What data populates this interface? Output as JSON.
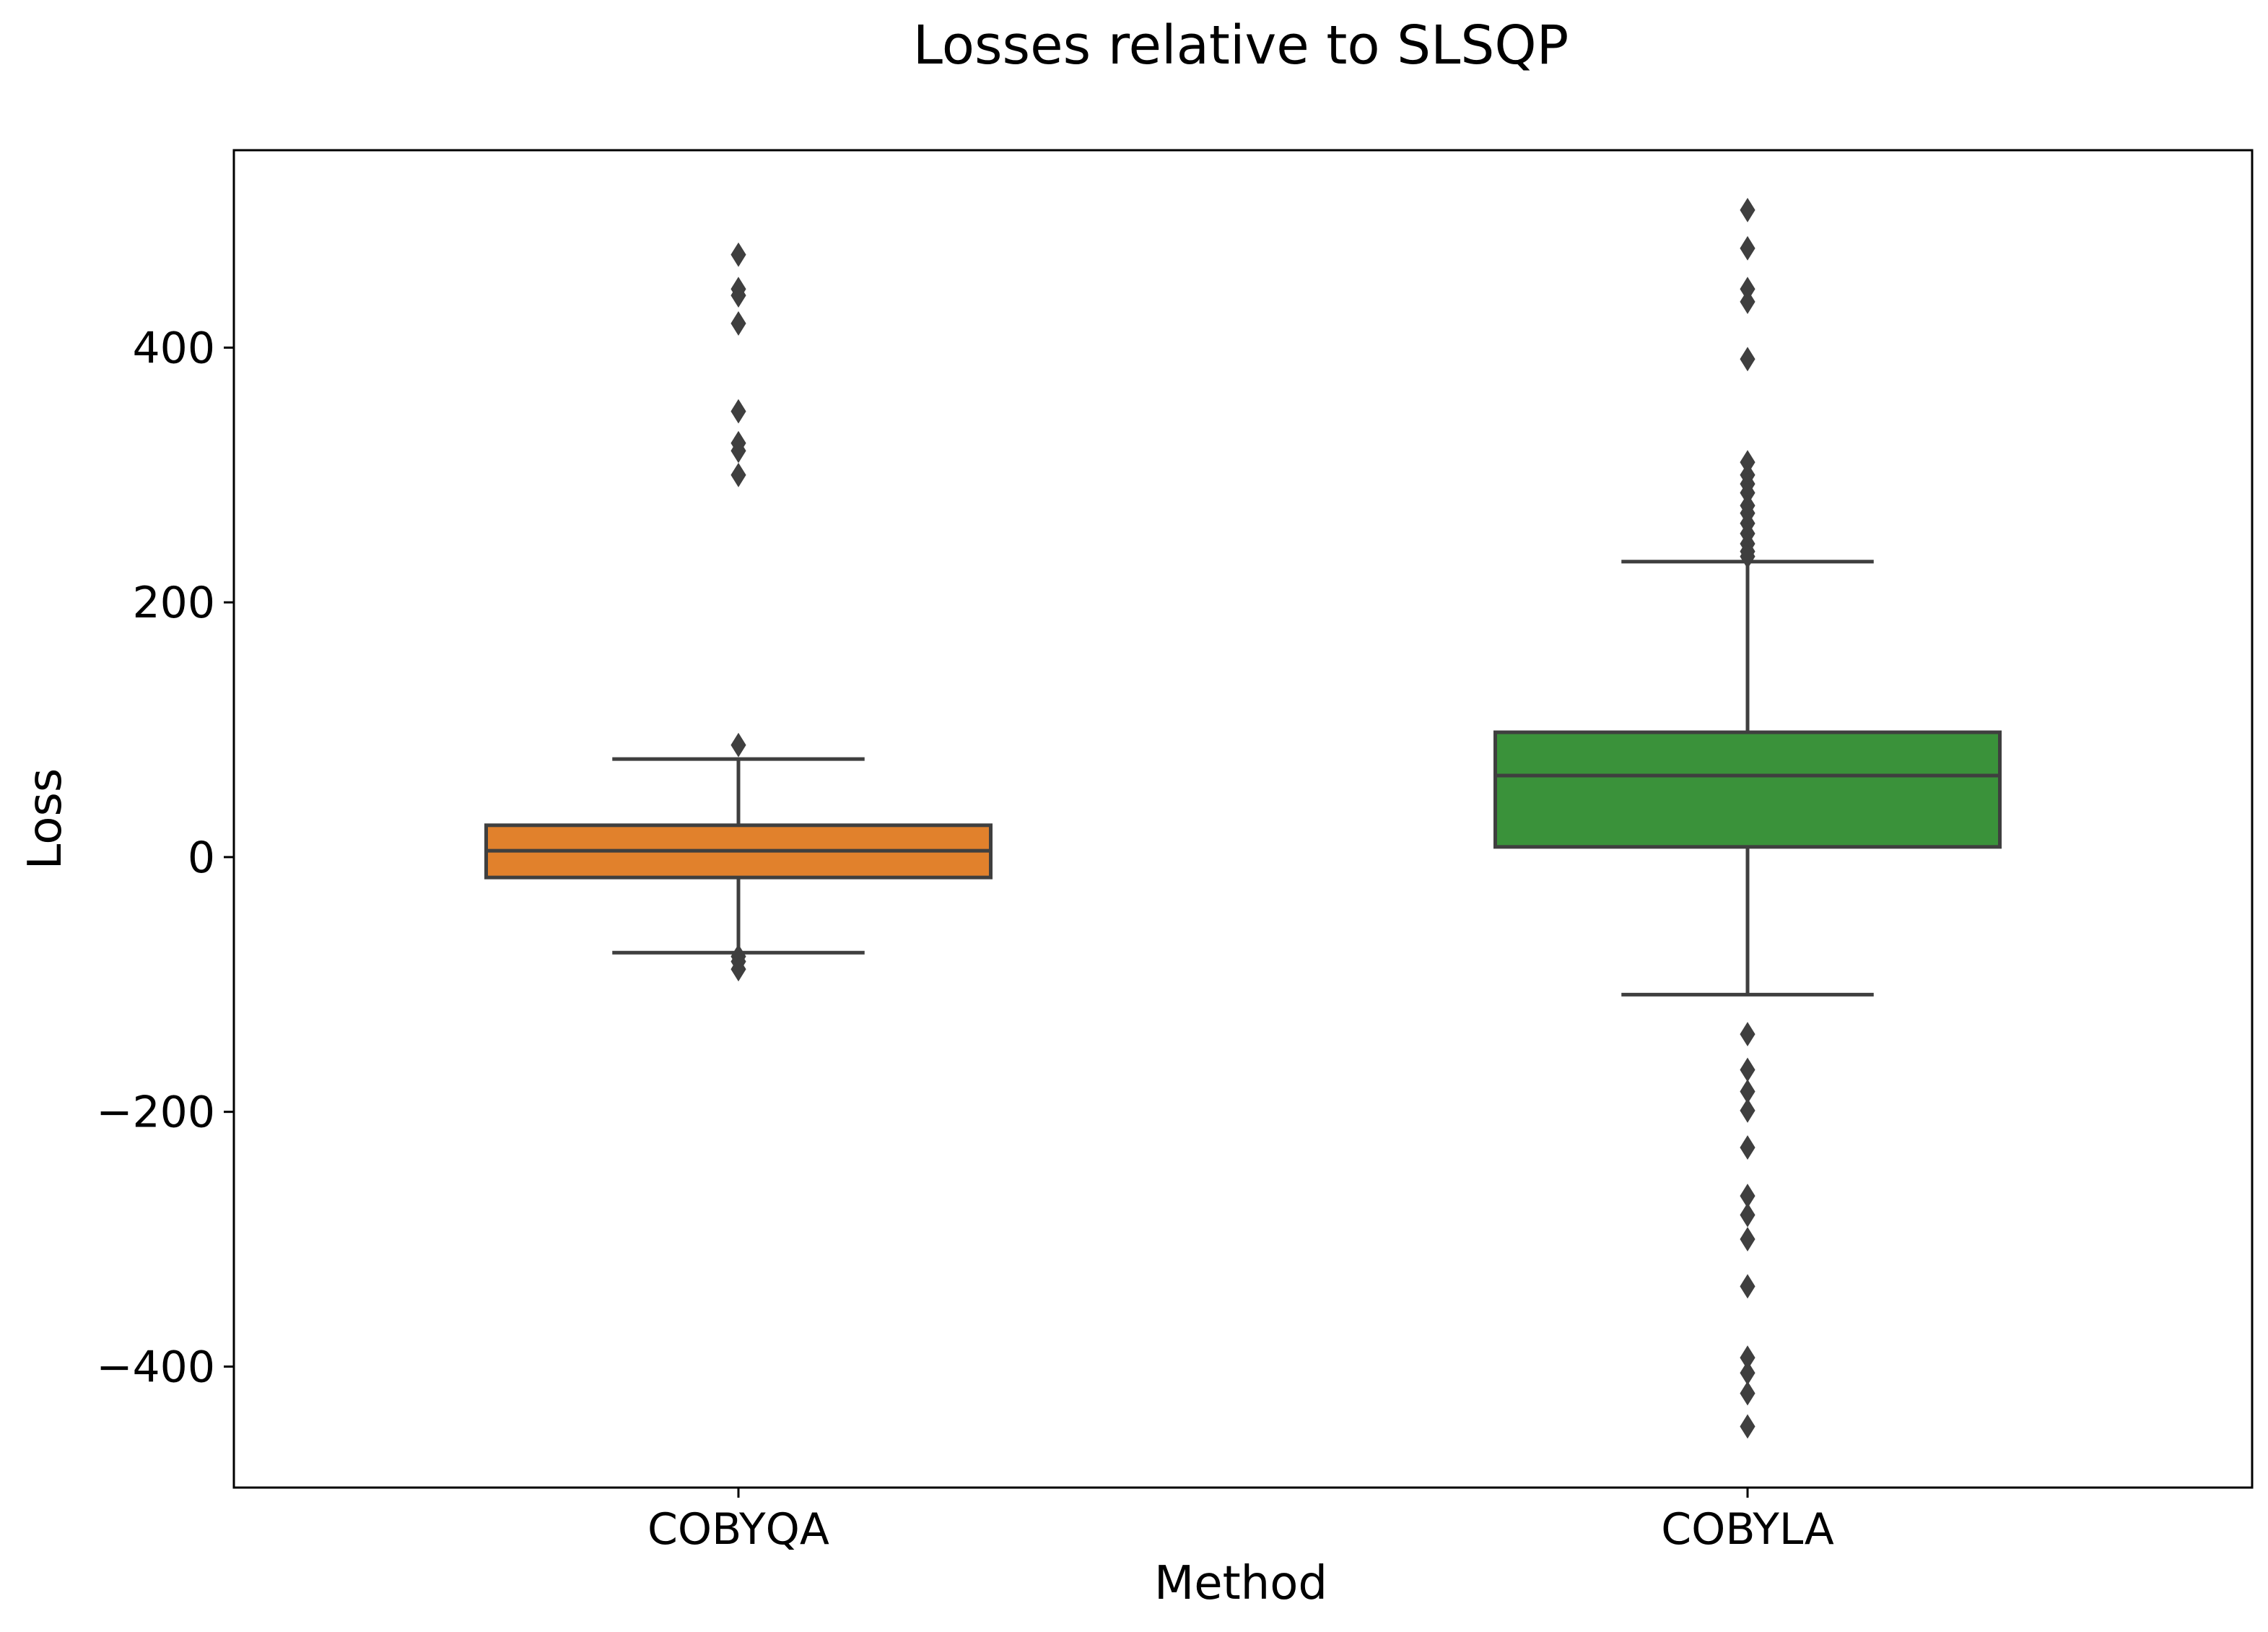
{
  "chart_data": {
    "type": "box",
    "title": "Losses relative to SLSQP",
    "xlabel": "Method",
    "ylabel": "Loss",
    "ylim": [
      -495,
      555
    ],
    "yticks": [
      {
        "value": 400,
        "label": "400"
      },
      {
        "value": 200,
        "label": "200"
      },
      {
        "value": 0,
        "label": "0"
      },
      {
        "value": -200,
        "label": "−200"
      },
      {
        "value": -400,
        "label": "−400"
      }
    ],
    "categories": [
      "COBYQA",
      "COBYLA"
    ],
    "grid": false,
    "legend": "none",
    "series": [
      {
        "category": "COBYQA",
        "color": "#e1812c",
        "whisker_low": -75,
        "q1": -16,
        "median": 5,
        "q3": 25,
        "whisker_high": 77,
        "outliers": [
          473,
          446,
          441,
          419,
          350,
          325,
          319,
          300,
          88,
          -78,
          -82,
          -88
        ]
      },
      {
        "category": "COBYLA",
        "color": "#3a923a",
        "whisker_low": -108,
        "q1": 8,
        "median": 64,
        "q3": 98,
        "whisker_high": 232,
        "outliers": [
          508,
          478,
          446,
          436,
          391,
          310,
          300,
          293,
          286,
          276,
          270,
          262,
          254,
          246,
          240,
          236,
          -139,
          -167,
          -184,
          -199,
          -228,
          -266,
          -281,
          -300,
          -337,
          -393,
          -405,
          -421,
          -447
        ]
      }
    ]
  }
}
